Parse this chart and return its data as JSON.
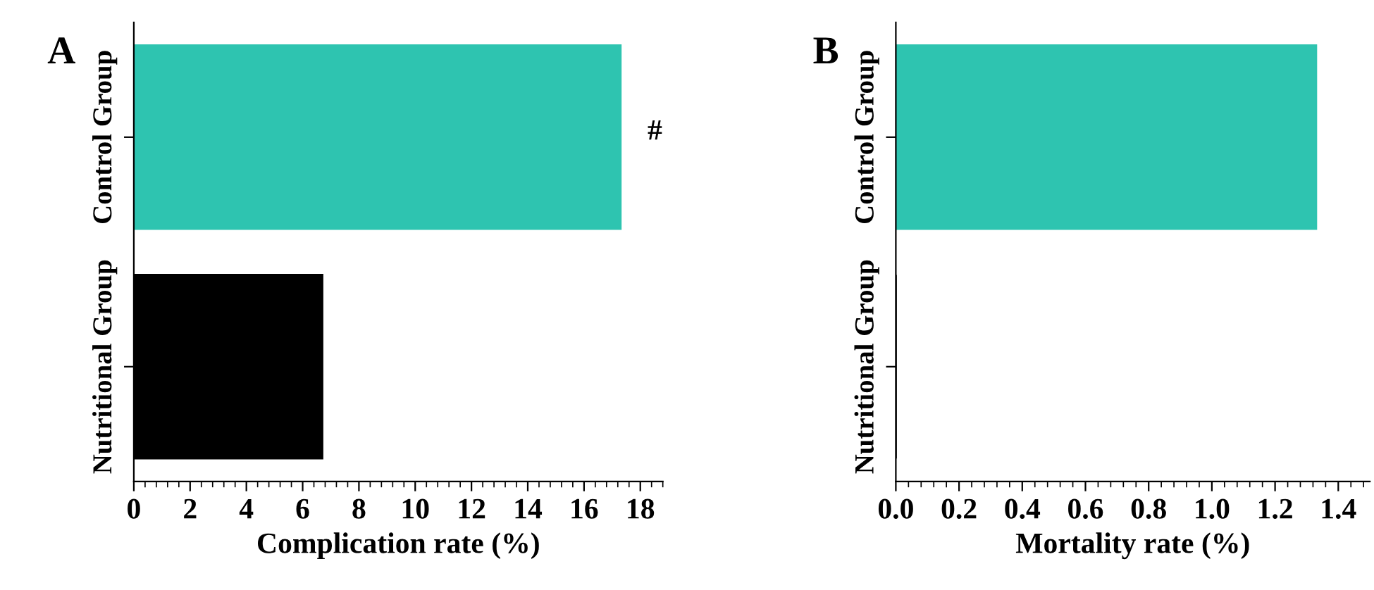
{
  "chart_data": [
    {
      "type": "bar",
      "orientation": "horizontal",
      "title": "A",
      "xlabel": "Complication rate (%)",
      "categories": [
        "Control Group",
        "Nutritional Group"
      ],
      "values": [
        17.3,
        6.7
      ],
      "colors": [
        "#2ec4b0",
        "#000000"
      ],
      "xlim": [
        0,
        18.8
      ],
      "xticks": [
        0,
        2,
        4,
        6,
        8,
        10,
        12,
        14,
        16,
        18
      ],
      "annotations": [
        "#"
      ]
    },
    {
      "type": "bar",
      "orientation": "horizontal",
      "title": "B",
      "xlabel": "Mortality rate (%)",
      "categories": [
        "Control Group",
        "Nutritional Group"
      ],
      "values": [
        1.33,
        0
      ],
      "colors": [
        "#2ec4b0",
        "#000000"
      ],
      "xlim": [
        0,
        1.5
      ],
      "xticks": [
        {
          "value": 0,
          "label": "0.0"
        },
        {
          "value": 0.2,
          "label": "0.2"
        },
        {
          "value": 0.4,
          "label": "0.4"
        },
        {
          "value": 0.6,
          "label": "0.6"
        },
        {
          "value": 0.8,
          "label": "0.8"
        },
        {
          "value": 1.0,
          "label": "1.0"
        },
        {
          "value": 1.2,
          "label": "1.2"
        },
        {
          "value": 1.4,
          "label": "1.4"
        }
      ]
    }
  ]
}
